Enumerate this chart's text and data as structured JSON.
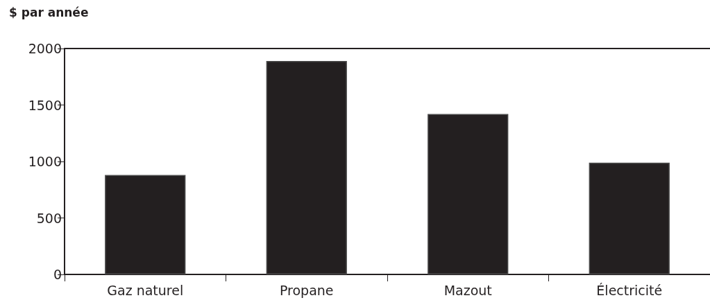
{
  "chart_data": {
    "type": "bar",
    "title": "$ par année",
    "categories": [
      "Gaz naturel",
      "Propane",
      "Mazout",
      "Électricité"
    ],
    "values": [
      880,
      1890,
      1420,
      990
    ],
    "color": "#231f20",
    "ylim": [
      0,
      2000
    ],
    "yticks": [
      0,
      500,
      1000,
      1500,
      2000
    ],
    "grid": false
  }
}
